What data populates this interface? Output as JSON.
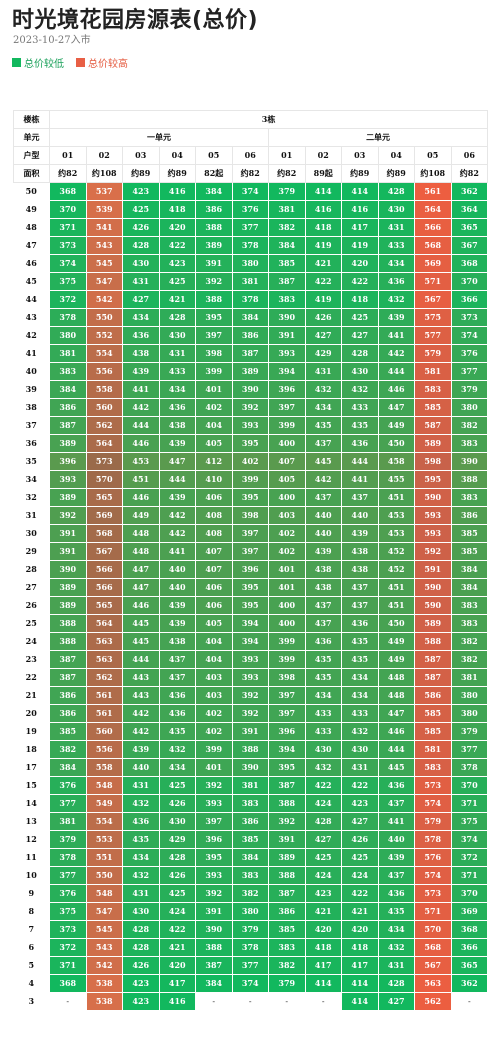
{
  "title": "时光境花园房源表(总价)",
  "date": "2023-10-27入市",
  "legend": {
    "low_label": "总价较低",
    "high_label": "总价较高",
    "low_color": "#12b85e",
    "high_color": "#e85f45"
  },
  "table": {
    "row_labels": {
      "building": "楼栋",
      "unit": "单元",
      "type": "户型",
      "area": "面积"
    },
    "building": "3栋",
    "units": [
      "一单元",
      "二单元"
    ],
    "types": [
      "01",
      "02",
      "03",
      "04",
      "05",
      "06",
      "01",
      "02",
      "03",
      "04",
      "05",
      "06"
    ],
    "areas": [
      "约82",
      "约108",
      "约89",
      "约89",
      "82起",
      "约82",
      "约82",
      "89起",
      "约89",
      "约89",
      "约108",
      "约82"
    ],
    "floors": [
      {
        "floor": "50",
        "prices": [
          "368",
          "537",
          "423",
          "416",
          "384",
          "374",
          "379",
          "414",
          "414",
          "428",
          "561",
          "362"
        ]
      },
      {
        "floor": "49",
        "prices": [
          "370",
          "539",
          "425",
          "418",
          "386",
          "376",
          "381",
          "416",
          "416",
          "430",
          "564",
          "364"
        ]
      },
      {
        "floor": "48",
        "prices": [
          "371",
          "541",
          "426",
          "420",
          "388",
          "377",
          "382",
          "418",
          "417",
          "431",
          "566",
          "365"
        ]
      },
      {
        "floor": "47",
        "prices": [
          "373",
          "543",
          "428",
          "422",
          "389",
          "378",
          "384",
          "419",
          "419",
          "433",
          "568",
          "367"
        ]
      },
      {
        "floor": "46",
        "prices": [
          "374",
          "545",
          "430",
          "423",
          "391",
          "380",
          "385",
          "421",
          "420",
          "434",
          "569",
          "368"
        ]
      },
      {
        "floor": "45",
        "prices": [
          "375",
          "547",
          "431",
          "425",
          "392",
          "381",
          "387",
          "422",
          "422",
          "436",
          "571",
          "370"
        ]
      },
      {
        "floor": "44",
        "prices": [
          "372",
          "542",
          "427",
          "421",
          "388",
          "378",
          "383",
          "419",
          "418",
          "432",
          "567",
          "366"
        ]
      },
      {
        "floor": "43",
        "prices": [
          "378",
          "550",
          "434",
          "428",
          "395",
          "384",
          "390",
          "426",
          "425",
          "439",
          "575",
          "373"
        ]
      },
      {
        "floor": "42",
        "prices": [
          "380",
          "552",
          "436",
          "430",
          "397",
          "386",
          "391",
          "427",
          "427",
          "441",
          "577",
          "374"
        ]
      },
      {
        "floor": "41",
        "prices": [
          "381",
          "554",
          "438",
          "431",
          "398",
          "387",
          "393",
          "429",
          "428",
          "442",
          "579",
          "376"
        ]
      },
      {
        "floor": "40",
        "prices": [
          "383",
          "556",
          "439",
          "433",
          "399",
          "389",
          "394",
          "431",
          "430",
          "444",
          "581",
          "377"
        ]
      },
      {
        "floor": "39",
        "prices": [
          "384",
          "558",
          "441",
          "434",
          "401",
          "390",
          "396",
          "432",
          "432",
          "446",
          "583",
          "379"
        ]
      },
      {
        "floor": "38",
        "prices": [
          "386",
          "560",
          "442",
          "436",
          "402",
          "392",
          "397",
          "434",
          "433",
          "447",
          "585",
          "380"
        ]
      },
      {
        "floor": "37",
        "prices": [
          "387",
          "562",
          "444",
          "438",
          "404",
          "393",
          "399",
          "435",
          "435",
          "449",
          "587",
          "382"
        ]
      },
      {
        "floor": "36",
        "prices": [
          "389",
          "564",
          "446",
          "439",
          "405",
          "395",
          "400",
          "437",
          "436",
          "450",
          "589",
          "383"
        ]
      },
      {
        "floor": "35",
        "prices": [
          "396",
          "573",
          "453",
          "447",
          "412",
          "402",
          "407",
          "445",
          "444",
          "458",
          "598",
          "390"
        ]
      },
      {
        "floor": "34",
        "prices": [
          "393",
          "570",
          "451",
          "444",
          "410",
          "399",
          "405",
          "442",
          "441",
          "455",
          "595",
          "388"
        ]
      },
      {
        "floor": "32",
        "prices": [
          "389",
          "565",
          "446",
          "439",
          "406",
          "395",
          "400",
          "437",
          "437",
          "451",
          "590",
          "383"
        ]
      },
      {
        "floor": "31",
        "prices": [
          "392",
          "569",
          "449",
          "442",
          "408",
          "398",
          "403",
          "440",
          "440",
          "453",
          "593",
          "386"
        ]
      },
      {
        "floor": "30",
        "prices": [
          "391",
          "568",
          "448",
          "442",
          "408",
          "397",
          "402",
          "440",
          "439",
          "453",
          "593",
          "385"
        ]
      },
      {
        "floor": "29",
        "prices": [
          "391",
          "567",
          "448",
          "441",
          "407",
          "397",
          "402",
          "439",
          "438",
          "452",
          "592",
          "385"
        ]
      },
      {
        "floor": "28",
        "prices": [
          "390",
          "566",
          "447",
          "440",
          "407",
          "396",
          "401",
          "438",
          "438",
          "452",
          "591",
          "384"
        ]
      },
      {
        "floor": "27",
        "prices": [
          "389",
          "566",
          "447",
          "440",
          "406",
          "395",
          "401",
          "438",
          "437",
          "451",
          "590",
          "384"
        ]
      },
      {
        "floor": "26",
        "prices": [
          "389",
          "565",
          "446",
          "439",
          "406",
          "395",
          "400",
          "437",
          "437",
          "451",
          "590",
          "383"
        ]
      },
      {
        "floor": "25",
        "prices": [
          "388",
          "564",
          "445",
          "439",
          "405",
          "394",
          "400",
          "437",
          "436",
          "450",
          "589",
          "383"
        ]
      },
      {
        "floor": "24",
        "prices": [
          "388",
          "563",
          "445",
          "438",
          "404",
          "394",
          "399",
          "436",
          "435",
          "449",
          "588",
          "382"
        ]
      },
      {
        "floor": "23",
        "prices": [
          "387",
          "563",
          "444",
          "437",
          "404",
          "393",
          "399",
          "435",
          "435",
          "449",
          "587",
          "382"
        ]
      },
      {
        "floor": "22",
        "prices": [
          "387",
          "562",
          "443",
          "437",
          "403",
          "393",
          "398",
          "435",
          "434",
          "448",
          "587",
          "381"
        ]
      },
      {
        "floor": "21",
        "prices": [
          "386",
          "561",
          "443",
          "436",
          "403",
          "392",
          "397",
          "434",
          "434",
          "448",
          "586",
          "380"
        ]
      },
      {
        "floor": "20",
        "prices": [
          "386",
          "561",
          "442",
          "436",
          "402",
          "392",
          "397",
          "433",
          "433",
          "447",
          "585",
          "380"
        ]
      },
      {
        "floor": "19",
        "prices": [
          "385",
          "560",
          "442",
          "435",
          "402",
          "391",
          "396",
          "433",
          "432",
          "446",
          "585",
          "379"
        ]
      },
      {
        "floor": "18",
        "prices": [
          "382",
          "556",
          "439",
          "432",
          "399",
          "388",
          "394",
          "430",
          "430",
          "444",
          "581",
          "377"
        ]
      },
      {
        "floor": "17",
        "prices": [
          "384",
          "558",
          "440",
          "434",
          "401",
          "390",
          "395",
          "432",
          "431",
          "445",
          "583",
          "378"
        ]
      },
      {
        "floor": "15",
        "prices": [
          "376",
          "548",
          "431",
          "425",
          "392",
          "381",
          "387",
          "422",
          "422",
          "436",
          "573",
          "370"
        ]
      },
      {
        "floor": "14",
        "prices": [
          "377",
          "549",
          "432",
          "426",
          "393",
          "383",
          "388",
          "424",
          "423",
          "437",
          "574",
          "371"
        ]
      },
      {
        "floor": "13",
        "prices": [
          "381",
          "554",
          "436",
          "430",
          "397",
          "386",
          "392",
          "428",
          "427",
          "441",
          "579",
          "375"
        ]
      },
      {
        "floor": "12",
        "prices": [
          "379",
          "553",
          "435",
          "429",
          "396",
          "385",
          "391",
          "427",
          "426",
          "440",
          "578",
          "374"
        ]
      },
      {
        "floor": "11",
        "prices": [
          "378",
          "551",
          "434",
          "428",
          "395",
          "384",
          "389",
          "425",
          "425",
          "439",
          "576",
          "372"
        ]
      },
      {
        "floor": "10",
        "prices": [
          "377",
          "550",
          "432",
          "426",
          "393",
          "383",
          "388",
          "424",
          "424",
          "437",
          "574",
          "371"
        ]
      },
      {
        "floor": "9",
        "prices": [
          "376",
          "548",
          "431",
          "425",
          "392",
          "382",
          "387",
          "423",
          "422",
          "436",
          "573",
          "370"
        ]
      },
      {
        "floor": "8",
        "prices": [
          "375",
          "547",
          "430",
          "424",
          "391",
          "380",
          "386",
          "421",
          "421",
          "435",
          "571",
          "369"
        ]
      },
      {
        "floor": "7",
        "prices": [
          "373",
          "545",
          "428",
          "422",
          "390",
          "379",
          "385",
          "420",
          "420",
          "434",
          "570",
          "368"
        ]
      },
      {
        "floor": "6",
        "prices": [
          "372",
          "543",
          "428",
          "421",
          "388",
          "378",
          "383",
          "418",
          "418",
          "432",
          "568",
          "366"
        ]
      },
      {
        "floor": "5",
        "prices": [
          "371",
          "542",
          "426",
          "420",
          "387",
          "377",
          "382",
          "417",
          "417",
          "431",
          "567",
          "365"
        ]
      },
      {
        "floor": "4",
        "prices": [
          "368",
          "538",
          "423",
          "417",
          "384",
          "374",
          "379",
          "414",
          "414",
          "428",
          "563",
          "362"
        ]
      },
      {
        "floor": "3",
        "prices": [
          "-",
          "538",
          "423",
          "416",
          "-",
          "-",
          "-",
          "-",
          "414",
          "427",
          "562",
          "-"
        ]
      }
    ]
  }
}
